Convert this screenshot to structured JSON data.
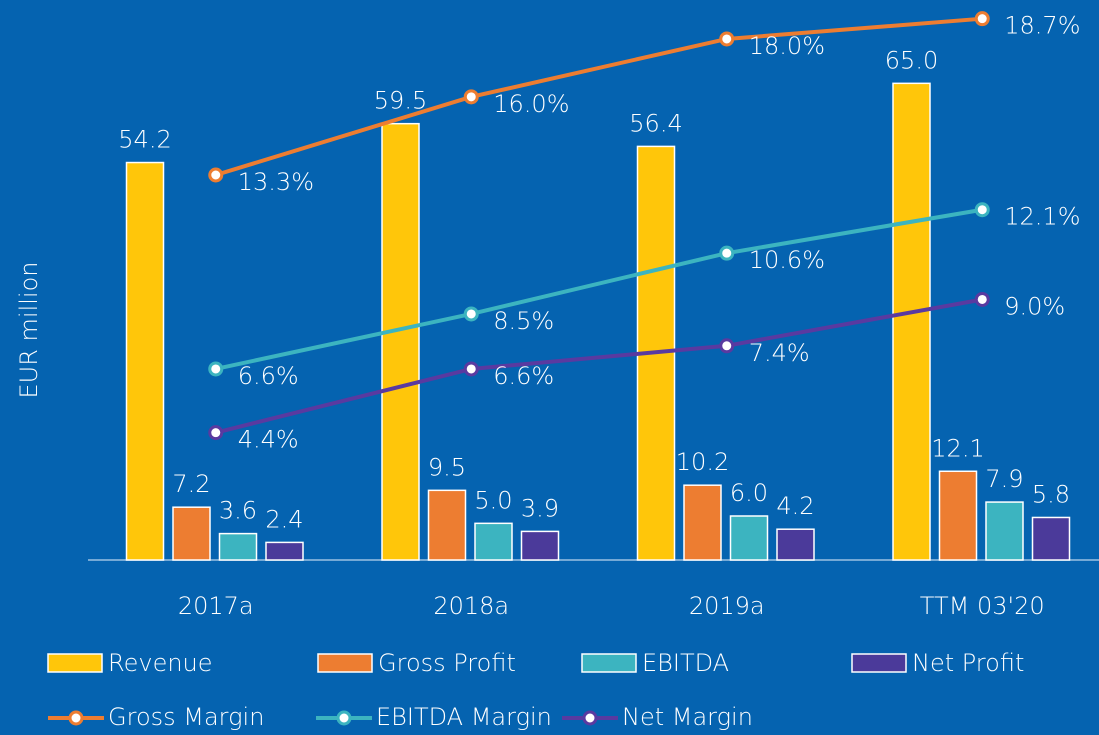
{
  "chart_data": {
    "type": "bar",
    "y_label": "EUR million",
    "categories": [
      "2017a",
      "2018a",
      "2019a",
      "TTM 03'20"
    ],
    "ylim": [
      0,
      75
    ],
    "y2lim": [
      0,
      19
    ],
    "series": [
      {
        "name": "Revenue",
        "color": "#ffc60a",
        "values": [
          54.2,
          59.5,
          56.4,
          65.0
        ],
        "value_labels": [
          "54.2",
          "59.5",
          "56.4",
          "65.0"
        ]
      },
      {
        "name": "Gross Profit",
        "color": "#ed7d31",
        "values": [
          7.2,
          9.5,
          10.2,
          12.1
        ],
        "value_labels": [
          "7.2",
          "9.5",
          "10.2",
          "12.1"
        ]
      },
      {
        "name": "EBITDA",
        "color": "#3cb4c0",
        "values": [
          3.6,
          5.0,
          6.0,
          7.9
        ],
        "value_labels": [
          "3.6",
          "5.0",
          "6.0",
          "7.9"
        ]
      },
      {
        "name": "Net Profit",
        "color": "#4b3a9a",
        "values": [
          2.4,
          3.9,
          4.2,
          5.8
        ],
        "value_labels": [
          "2.4",
          "3.9",
          "4.2",
          "5.8"
        ]
      },
      {
        "name": "Gross Margin",
        "type": "line",
        "axis": "y2",
        "color": "#ed7d31",
        "values": [
          13.3,
          16.0,
          18.0,
          18.7
        ],
        "value_labels": [
          "13.3%",
          "16.0%",
          "18.0%",
          "18.7%"
        ]
      },
      {
        "name": "EBITDA Margin",
        "type": "line",
        "axis": "y2",
        "color": "#3cb4c0",
        "values": [
          6.6,
          8.5,
          10.6,
          12.1
        ],
        "value_labels": [
          "6.6%",
          "8.5%",
          "10.6%",
          "12.1%"
        ]
      },
      {
        "name": "Net Margin",
        "type": "line",
        "axis": "y2",
        "color": "#5a3aa0",
        "values": [
          4.4,
          6.6,
          7.4,
          9.0
        ],
        "value_labels": [
          "4.4%",
          "6.6%",
          "7.4%",
          "9.0%"
        ]
      }
    ]
  }
}
